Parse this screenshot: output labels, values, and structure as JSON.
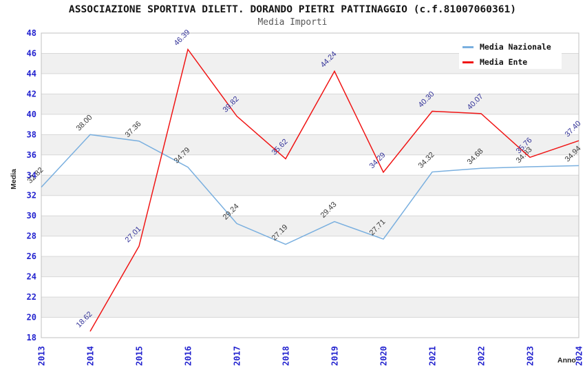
{
  "chart_data": {
    "type": "line",
    "title": "ASSOCIAZIONE SPORTIVA DILETT. DORANDO PIETRI PATTINAGGIO (c.f.81007060361)",
    "subtitle": "Media Importi",
    "xlabel": "Anno",
    "ylabel": "Media",
    "categories": [
      "2013",
      "2014",
      "2015",
      "2016",
      "2017",
      "2018",
      "2019",
      "2020",
      "2021",
      "2022",
      "2023",
      "2024"
    ],
    "ylim": [
      18,
      48
    ],
    "ytick_step": 2,
    "grid": "horizontal",
    "legend_position": "top-right",
    "series": [
      {
        "name": "Media Nazionale",
        "color": "#79afdf",
        "label_color": "#3a3a3a",
        "values": [
          32.82,
          38.0,
          37.36,
          34.79,
          29.24,
          27.19,
          29.43,
          27.71,
          34.32,
          34.68,
          34.83,
          34.94
        ]
      },
      {
        "name": "Media Ente",
        "color": "#f01414",
        "label_color": "#333399",
        "values": [
          null,
          18.62,
          27.01,
          46.39,
          39.82,
          35.62,
          44.24,
          34.29,
          40.3,
          40.07,
          35.76,
          37.4
        ]
      }
    ],
    "colors": {
      "tick_label": "#2323cf",
      "grid_line": "#d8d8d8",
      "plot_border": "#c0c0c0",
      "band_light": "#ffffff",
      "band_dark": "#f0f0f0"
    }
  }
}
